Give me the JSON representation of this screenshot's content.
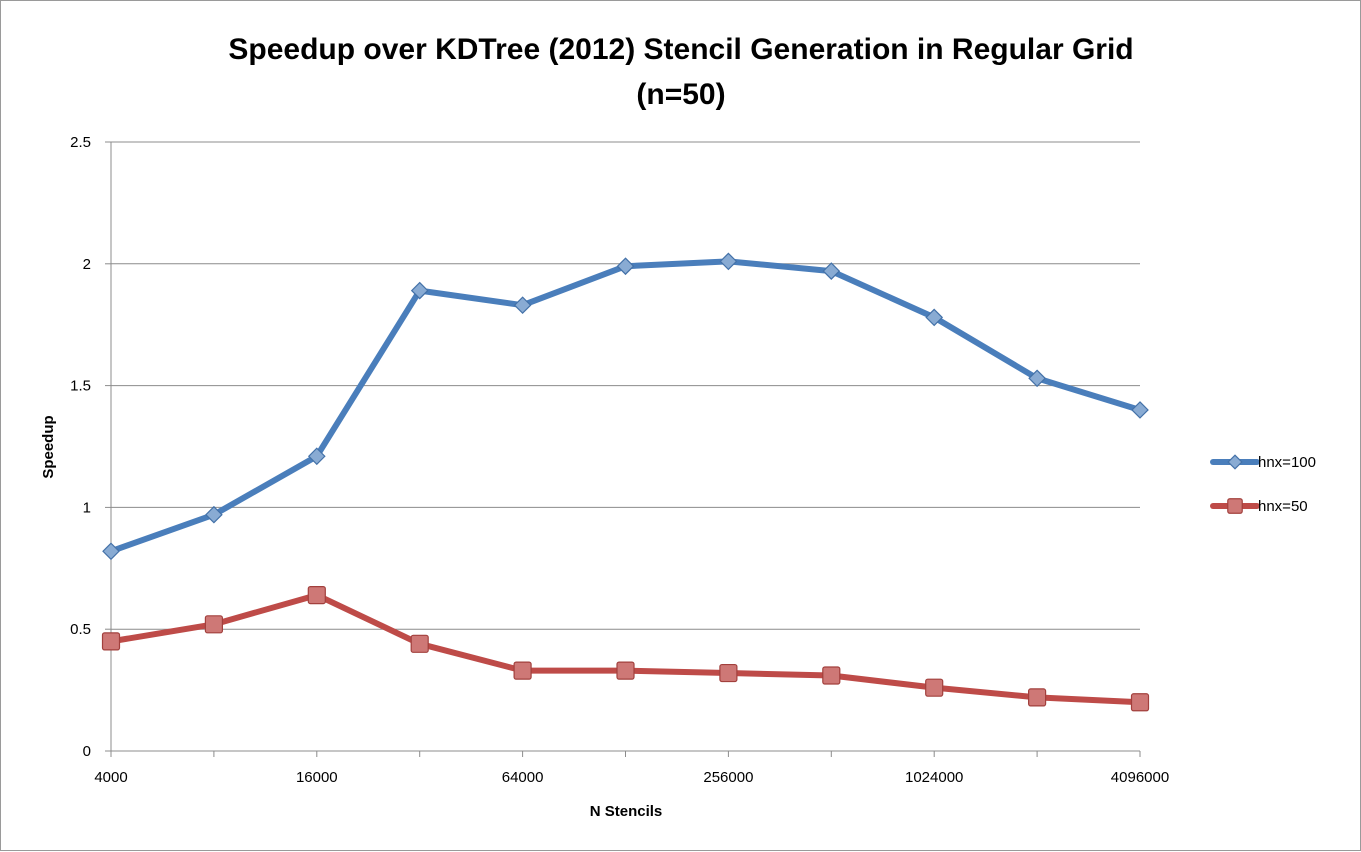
{
  "chart_data": {
    "type": "line",
    "title": [
      "Speedup over KDTree (2012) Stencil Generation in Regular Grid",
      "(n=50)"
    ],
    "xlabel": "N Stencils",
    "ylabel": "Speedup",
    "x": [
      4000,
      8000,
      16000,
      32000,
      64000,
      128000,
      256000,
      512000,
      1024000,
      2048000,
      4096000
    ],
    "x_tick_labels": [
      "4000",
      "16000",
      "64000",
      "256000",
      "1024000",
      "4096000"
    ],
    "x_tick_values": [
      4000,
      16000,
      64000,
      256000,
      1024000,
      4096000
    ],
    "x_scale": "log2",
    "ylim": [
      0,
      2.5
    ],
    "y_ticks": [
      0,
      0.5,
      1,
      1.5,
      2,
      2.5
    ],
    "y_tick_labels": [
      "0",
      "0.5",
      "1",
      "1.5",
      "2",
      "2.5"
    ],
    "grid": "horizontal",
    "legend_position": "right",
    "series": [
      {
        "name": "hnx=100",
        "marker": "diamond",
        "color": "#4a7ebb",
        "values": [
          0.82,
          0.97,
          1.21,
          1.89,
          1.83,
          1.99,
          2.01,
          1.97,
          1.78,
          1.53,
          1.4
        ]
      },
      {
        "name": "hnx=50",
        "marker": "square",
        "color": "#be4b48",
        "values": [
          0.45,
          0.52,
          0.64,
          0.44,
          0.33,
          0.33,
          0.32,
          0.31,
          0.26,
          0.22,
          0.2
        ]
      }
    ]
  }
}
